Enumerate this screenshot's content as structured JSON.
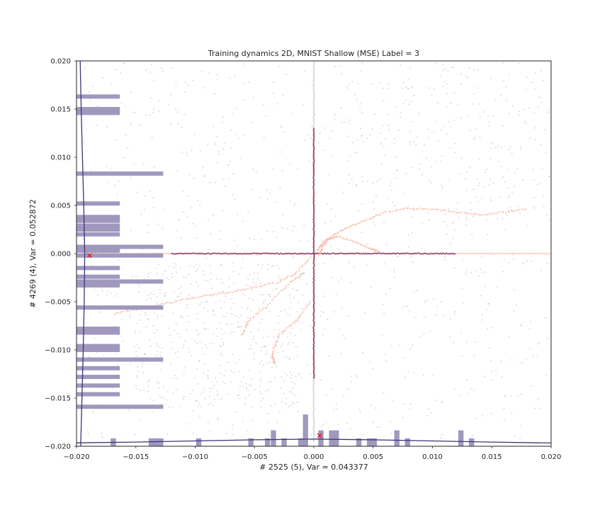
{
  "chart_data": {
    "type": "scatter",
    "title": "Training dynamics 2D, MNIST Shallow (MSE) Label = 3",
    "xlabel": "# 2525 (5), Var = 0.043377",
    "ylabel": "# 4269 (4), Var = 0.052872",
    "xlim": [
      -0.02,
      0.02
    ],
    "ylim": [
      -0.02,
      0.02
    ],
    "xticks": [
      -0.02,
      -0.015,
      -0.01,
      -0.005,
      0.0,
      0.005,
      0.01,
      0.015,
      0.02
    ],
    "yticks": [
      -0.02,
      -0.015,
      -0.01,
      -0.005,
      0.0,
      0.005,
      0.01,
      0.015,
      0.02
    ],
    "xtick_labels": [
      "−0.020",
      "−0.015",
      "−0.010",
      "−0.005",
      "0.000",
      "0.005",
      "0.010",
      "0.015",
      "0.020"
    ],
    "ytick_labels": [
      "−0.020",
      "−0.015",
      "−0.010",
      "−0.005",
      "0.000",
      "0.005",
      "0.010",
      "0.015",
      "0.020"
    ],
    "grid": false,
    "colors": {
      "hist": "#9c92bb",
      "kde": "#3b3577",
      "marker": "#e8141c",
      "scatter_dark": "#7a1a45",
      "scatter_light": "#f6b8a5",
      "scatter_grey": "#b9aab8"
    },
    "markers": [
      {
        "name": "x-marker-left",
        "x": -0.0189,
        "y": -0.0002
      },
      {
        "name": "x-marker-bottom",
        "x": 0.0005,
        "y": -0.0189
      }
    ],
    "x_hist": {
      "bin_width": 0.00044,
      "bins": [
        {
          "x": -0.0169,
          "count": 2
        },
        {
          "x": -0.0137,
          "count": 2
        },
        {
          "x": -0.0133,
          "count": 2
        },
        {
          "x": -0.0129,
          "count": 2
        },
        {
          "x": -0.0097,
          "count": 2
        },
        {
          "x": -0.0053,
          "count": 2
        },
        {
          "x": -0.0039,
          "count": 2
        },
        {
          "x": -0.0034,
          "count": 4
        },
        {
          "x": -0.0025,
          "count": 2
        },
        {
          "x": -0.0011,
          "count": 2
        },
        {
          "x": -0.0007,
          "count": 8
        },
        {
          "x": 0.0006,
          "count": 4
        },
        {
          "x": 0.0015,
          "count": 4
        },
        {
          "x": 0.0019,
          "count": 4
        },
        {
          "x": 0.0038,
          "count": 2
        },
        {
          "x": 0.0047,
          "count": 2
        },
        {
          "x": 0.0051,
          "count": 2
        },
        {
          "x": 0.007,
          "count": 4
        },
        {
          "x": 0.0079,
          "count": 2
        },
        {
          "x": 0.0124,
          "count": 4
        },
        {
          "x": 0.0133,
          "count": 2
        }
      ]
    },
    "y_hist": {
      "bin_width": 0.00044,
      "bins": [
        {
          "y": 0.0163,
          "count": 4
        },
        {
          "y": 0.015,
          "count": 4
        },
        {
          "y": 0.0146,
          "count": 4
        },
        {
          "y": 0.0083,
          "count": 8
        },
        {
          "y": 0.0052,
          "count": 4
        },
        {
          "y": 0.0038,
          "count": 4
        },
        {
          "y": 0.0034,
          "count": 4
        },
        {
          "y": 0.0029,
          "count": 4
        },
        {
          "y": 0.0025,
          "count": 4
        },
        {
          "y": 0.002,
          "count": 4
        },
        {
          "y": 0.0007,
          "count": 8
        },
        {
          "y": 0.0003,
          "count": 4
        },
        {
          "y": -0.0002,
          "count": 8
        },
        {
          "y": -0.0015,
          "count": 4
        },
        {
          "y": -0.0024,
          "count": 4
        },
        {
          "y": -0.0029,
          "count": 8
        },
        {
          "y": -0.0033,
          "count": 4
        },
        {
          "y": -0.0056,
          "count": 8
        },
        {
          "y": -0.0078,
          "count": 4
        },
        {
          "y": -0.0082,
          "count": 4
        },
        {
          "y": -0.0096,
          "count": 4
        },
        {
          "y": -0.01,
          "count": 4
        },
        {
          "y": -0.011,
          "count": 8
        },
        {
          "y": -0.0119,
          "count": 4
        },
        {
          "y": -0.0128,
          "count": 4
        },
        {
          "y": -0.0137,
          "count": 4
        },
        {
          "y": -0.0146,
          "count": 4
        },
        {
          "y": -0.0159,
          "count": 8
        }
      ]
    },
    "kde_x": {
      "x": [
        -0.02,
        -0.015,
        -0.01,
        -0.005,
        0.0,
        0.005,
        0.01,
        0.015,
        0.02
      ],
      "density": [
        0.5,
        1.2,
        2.2,
        3.2,
        3.8,
        3.2,
        2.2,
        1.2,
        0.4
      ]
    },
    "kde_y": {
      "y": [
        -0.02,
        -0.015,
        -0.01,
        -0.005,
        0.0,
        0.005,
        0.01,
        0.015,
        0.02
      ],
      "density": [
        0.8,
        1.3,
        1.8,
        2.2,
        2.4,
        2.0,
        1.5,
        1.0,
        0.6
      ]
    },
    "series": [
      {
        "style": "horizontal-band",
        "y": 0.0,
        "x_range": [
          -0.0195,
          0.0199
        ],
        "color": "scatter_dark"
      },
      {
        "style": "vertical-band",
        "x": 0.0,
        "y_range": [
          -0.0195,
          0.0199
        ],
        "color": "scatter_dark"
      },
      {
        "style": "trajectory",
        "color": "scatter_light",
        "points": [
          [
            0.0003,
            0.0003
          ],
          [
            0.0008,
            0.0012
          ],
          [
            0.0018,
            0.002
          ],
          [
            0.003,
            0.0028
          ],
          [
            0.0045,
            0.0035
          ],
          [
            0.006,
            0.0043
          ],
          [
            0.008,
            0.0047
          ],
          [
            0.01,
            0.0046
          ],
          [
            0.012,
            0.0043
          ],
          [
            0.014,
            0.004
          ],
          [
            0.016,
            0.0043
          ],
          [
            0.018,
            0.0047
          ]
        ]
      },
      {
        "style": "trajectory",
        "color": "scatter_light",
        "points": [
          [
            -0.0003,
            -0.0004
          ],
          [
            -0.0015,
            -0.002
          ],
          [
            -0.003,
            -0.003
          ],
          [
            -0.005,
            -0.0035
          ],
          [
            -0.007,
            -0.004
          ],
          [
            -0.009,
            -0.0043
          ],
          [
            -0.011,
            -0.0048
          ],
          [
            -0.013,
            -0.0053
          ],
          [
            -0.015,
            -0.0058
          ],
          [
            -0.017,
            -0.0063
          ]
        ]
      },
      {
        "style": "trajectory",
        "color": "scatter_light",
        "points": [
          [
            -0.0008,
            -0.002
          ],
          [
            -0.002,
            -0.003
          ],
          [
            -0.004,
            -0.0055
          ],
          [
            -0.0055,
            -0.007
          ],
          [
            -0.006,
            -0.0085
          ]
        ]
      },
      {
        "style": "trajectory",
        "color": "scatter_light",
        "points": [
          [
            -0.0003,
            -0.005
          ],
          [
            -0.0015,
            -0.007
          ],
          [
            -0.003,
            -0.0085
          ],
          [
            -0.0035,
            -0.0105
          ],
          [
            -0.0033,
            -0.0115
          ]
        ]
      },
      {
        "style": "trajectory",
        "color": "scatter_light",
        "points": [
          [
            0.0004,
            -0.0002
          ],
          [
            0.0008,
            0.0008
          ],
          [
            0.0012,
            0.0015
          ],
          [
            0.002,
            0.0018
          ],
          [
            0.0035,
            0.0012
          ],
          [
            0.0048,
            0.0005
          ],
          [
            0.0055,
            0.0002
          ]
        ]
      },
      {
        "style": "cloud",
        "color": "scatter_grey",
        "x_range": [
          -0.0195,
          0.0199
        ],
        "y_range": [
          -0.0195,
          0.0199
        ],
        "count": 900
      },
      {
        "style": "cloud",
        "color": "scatter_grey",
        "x_range": [
          0.003,
          0.0195
        ],
        "y_range": [
          0.004,
          0.0195
        ],
        "count": 120
      },
      {
        "style": "cloud",
        "color": "scatter_grey",
        "x_range": [
          -0.015,
          -0.001
        ],
        "y_range": [
          -0.016,
          -0.001
        ],
        "count": 400
      }
    ]
  }
}
